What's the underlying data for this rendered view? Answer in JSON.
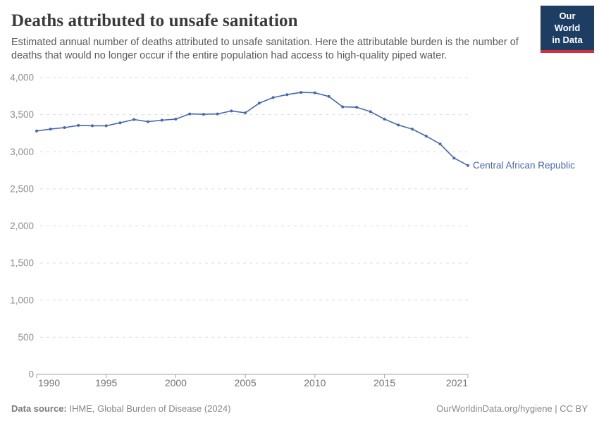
{
  "header": {
    "title": "Deaths attributed to unsafe sanitation",
    "subtitle": "Estimated annual number of deaths attributed to unsafe sanitation. Here the attributable burden is the number of deaths that would no longer occur if the entire population had access to high-quality piped water.",
    "logo": {
      "line1": "Our World",
      "line2": "in Data",
      "bg_color": "#1d3d63",
      "accent_color": "#d0313d"
    }
  },
  "chart_data": {
    "type": "line",
    "title": "Deaths attributed to unsafe sanitation",
    "xlabel": "",
    "ylabel": "",
    "x": [
      1990,
      1991,
      1992,
      1993,
      1994,
      1995,
      1996,
      1997,
      1998,
      1999,
      2000,
      2001,
      2002,
      2003,
      2004,
      2005,
      2006,
      2007,
      2008,
      2009,
      2010,
      2011,
      2012,
      2013,
      2014,
      2015,
      2016,
      2017,
      2018,
      2019,
      2020,
      2021
    ],
    "series": [
      {
        "name": "Central African Republic",
        "color": "#4868ae",
        "values": [
          3280,
          3305,
          3325,
          3355,
          3350,
          3350,
          3390,
          3435,
          3405,
          3425,
          3440,
          3510,
          3505,
          3510,
          3550,
          3525,
          3655,
          3730,
          3770,
          3800,
          3795,
          3745,
          3605,
          3600,
          3540,
          3440,
          3360,
          3305,
          3210,
          3105,
          2915,
          2815
        ]
      }
    ],
    "x_ticks": [
      1990,
      1995,
      2000,
      2005,
      2010,
      2015,
      2021
    ],
    "y_ticks": [
      0,
      500,
      1000,
      1500,
      2000,
      2500,
      3000,
      3500,
      4000
    ],
    "xlim": [
      1990,
      2021
    ],
    "ylim": [
      0,
      4000
    ],
    "grid": "horizontal-dashed",
    "legend": "inline-end-label",
    "colors": {
      "gridline": "#dcdcdc",
      "axis": "#a6a6a6",
      "y_tick_label": "#8e8e8e",
      "x_tick_label": "#737373"
    }
  },
  "footer": {
    "source_label": "Data source:",
    "source_value": " IHME, Global Burden of Disease (2024)",
    "credit": "OurWorldinData.org/hygiene | CC BY"
  }
}
